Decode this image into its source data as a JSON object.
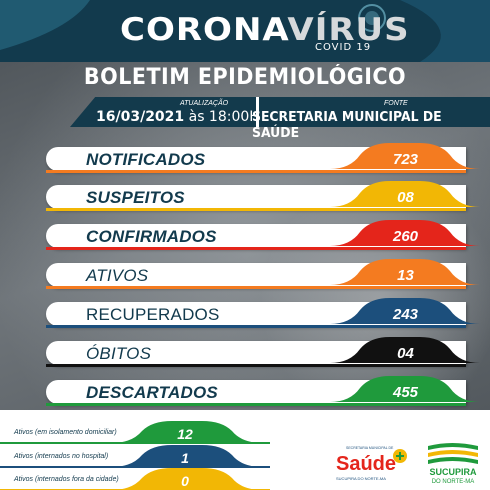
{
  "header": {
    "title_part1": "CORONA",
    "title_part2": "VÍRUS",
    "subtitle": "COVID 19",
    "bulletin_title": "BOLETIM EPIDEMIOLÓGICO"
  },
  "update": {
    "label": "ATUALIZAÇÃO",
    "date": "16/03/2021",
    "time": "às 18:00H"
  },
  "source": {
    "label": "FONTE",
    "value": "SECRETARIA MUNICIPAL DE SAÚDE"
  },
  "stats": [
    {
      "label": "NOTIFICADOS",
      "value": "723",
      "color": "#f47b20"
    },
    {
      "label": "SUSPEITOS",
      "value": "08",
      "color": "#f2b705"
    },
    {
      "label": "CONFIRMADOS",
      "value": "260",
      "color": "#e4251b"
    },
    {
      "label": "ATIVOS",
      "value": "13",
      "color": "#f47b20"
    },
    {
      "label": "RECUPERADOS",
      "value": "243",
      "color": "#1c4f7c"
    },
    {
      "label": "ÓBITOS",
      "value": "04",
      "color": "#111111"
    },
    {
      "label": "DESCARTADOS",
      "value": "455",
      "color": "#1f9a3c"
    }
  ],
  "active_breakdown": [
    {
      "label": "Ativos (em isolamento domiciliar)",
      "value": "12",
      "color": "#1f9a3c"
    },
    {
      "label": "Ativos (internados no hospital)",
      "value": "1",
      "color": "#1c4f7c"
    },
    {
      "label": "Ativos (internados fora da cidade)",
      "value": "0",
      "color": "#f2b705"
    }
  ],
  "logos": {
    "saude_top": "SECRETARIA MUNICIPAL DE",
    "saude_name": "Saúde",
    "saude_city": "SUCUPIRA DO NORTE-MA",
    "city_name": "SUCUPIRA",
    "city_sub": "DO NORTE-MA"
  }
}
